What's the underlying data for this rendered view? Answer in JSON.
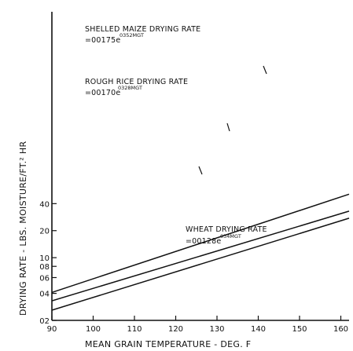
{
  "chart_data": {
    "type": "line",
    "xlabel": "MEAN GRAIN TEMPERATURE - DEG. F",
    "ylabel": "DRYING RATE - LBS. MOISTURE/FT.² HR",
    "xlim": [
      90,
      162
    ],
    "ylim": [
      0.02,
      55
    ],
    "yscale": "log",
    "grid": false,
    "x_ticks": [
      90,
      100,
      110,
      120,
      130,
      140,
      150,
      160
    ],
    "x_tick_labels": [
      "90",
      "100",
      "110",
      "120",
      "130",
      "140",
      "150",
      "160"
    ],
    "y_ticks": [
      0.02,
      0.04,
      0.06,
      0.08,
      0.1,
      0.2,
      0.4
    ],
    "y_tick_labels": [
      "02",
      "04",
      "06",
      "08",
      "10",
      "20",
      "40"
    ],
    "series": [
      {
        "name": "SHELLED MAIZE DRYING RATE",
        "equation_coef": "=00175e",
        "equation_exp": "0352MGT",
        "x": [
          90,
          162
        ],
        "y": [
          0.041,
          0.51
        ]
      },
      {
        "name": "ROUGH RICE DRYING RATE",
        "equation_coef": "=00170e",
        "equation_exp": "0328MGT",
        "x": [
          90,
          162
        ],
        "y": [
          0.033,
          0.33
        ]
      },
      {
        "name": "WHEAT DRYING RATE",
        "equation_coef": "=00128e",
        "equation_exp": "034MGT",
        "x": [
          90,
          162
        ],
        "y": [
          0.026,
          0.275
        ]
      }
    ]
  }
}
